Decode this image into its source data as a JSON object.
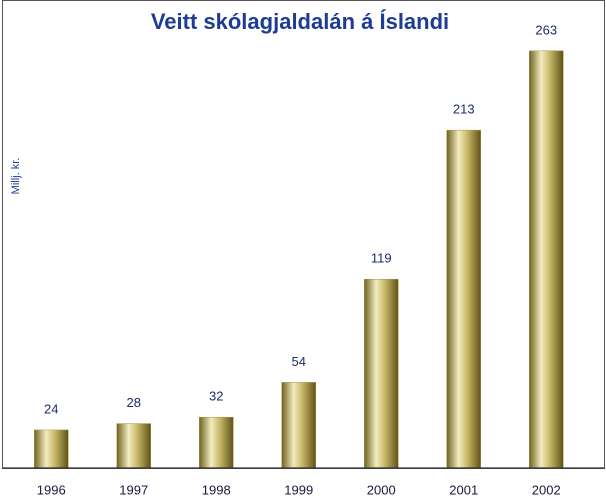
{
  "chart_data": {
    "type": "bar",
    "title": "Veitt skólagjaldalán á Íslandi",
    "y_label": "Millj. kr.",
    "categories": [
      "1996",
      "1997",
      "1998",
      "1999",
      "2000",
      "2001",
      "2002"
    ],
    "values": [
      24,
      28,
      32,
      54,
      119,
      213,
      263
    ],
    "ylim": [
      0,
      290
    ],
    "color": "#a8963e",
    "grid": false
  }
}
